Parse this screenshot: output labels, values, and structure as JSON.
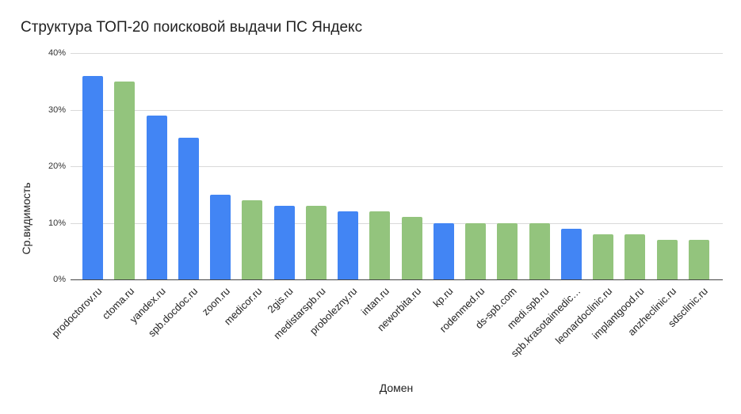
{
  "chart_data": {
    "type": "bar",
    "title": "Структура ТОП-20 поисковой выдачи ПС Яндекс",
    "xlabel": "Домен",
    "ylabel": "Ср.видимость",
    "ylim": [
      0,
      40
    ],
    "yticks": [
      "0%",
      "10%",
      "20%",
      "30%",
      "40%"
    ],
    "grid": true,
    "legend": "none",
    "colors": {
      "blue": "#4285f4",
      "green": "#93c47d"
    },
    "categories": [
      "prodoctorov.ru",
      "ctoma.ru",
      "yandex.ru",
      "spb.docdoc.ru",
      "zoon.ru",
      "medicor.ru",
      "2gis.ru",
      "medistarspb.ru",
      "probolezny.ru",
      "intan.ru",
      "neworbita.ru",
      "kp.ru",
      "rodenmed.ru",
      "ds-spb.com",
      "medi.spb.ru",
      "spb.krasotaimedic…",
      "leonardoclinic.ru",
      "implantgood.ru",
      "anzheclinic.ru",
      "sdsclinic.ru"
    ],
    "values": [
      36,
      35,
      29,
      25,
      15,
      14,
      13,
      13,
      12,
      12,
      11,
      10,
      10,
      10,
      10,
      9,
      8,
      8,
      7,
      7
    ],
    "bar_colors": [
      "blue",
      "green",
      "blue",
      "blue",
      "blue",
      "green",
      "blue",
      "green",
      "blue",
      "green",
      "green",
      "blue",
      "green",
      "green",
      "green",
      "blue",
      "green",
      "green",
      "green",
      "green"
    ]
  }
}
